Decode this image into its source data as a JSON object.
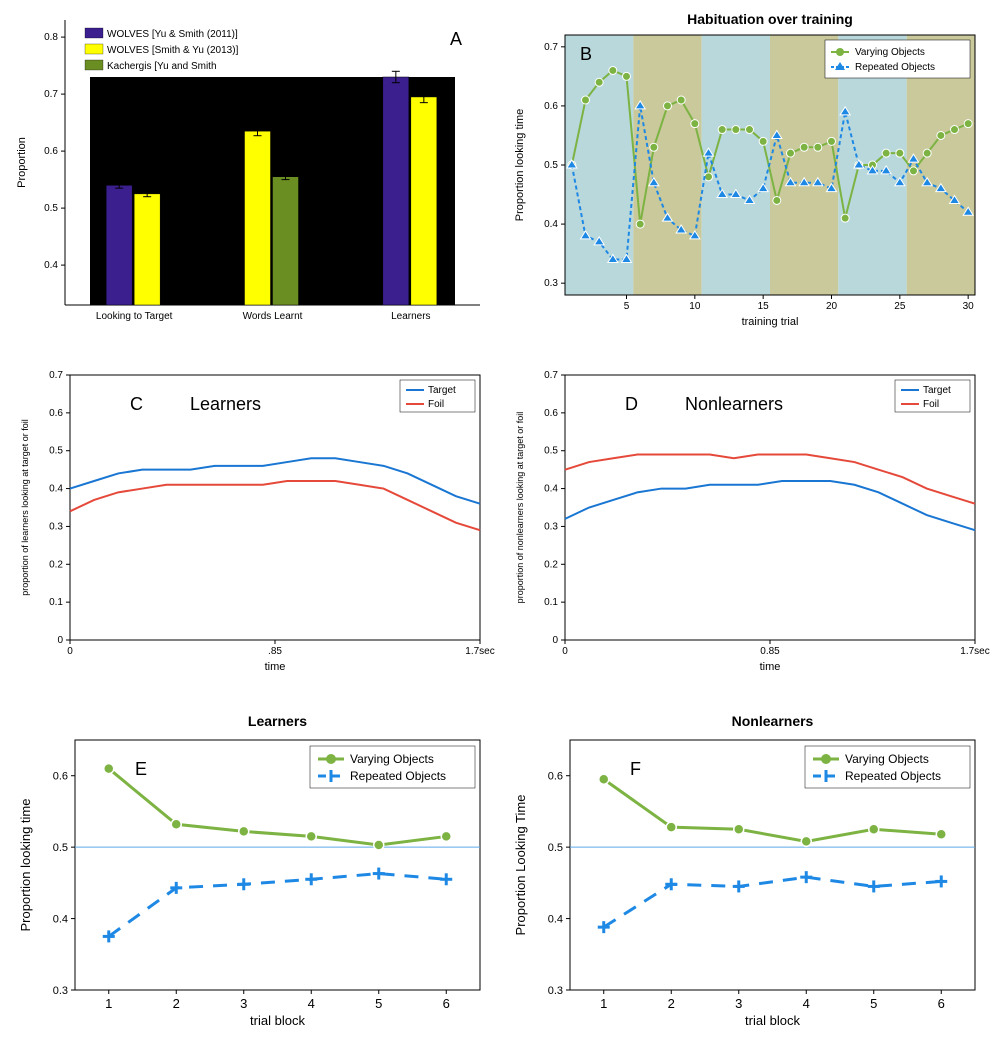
{
  "colors": {
    "purple": "#3b1f8f",
    "yellow": "#ffff00",
    "olive": "#6b8e23",
    "black": "#000000",
    "green": "#7cb342",
    "blue": "#1e88e5",
    "red": "#e5493a",
    "lineBlue": "#1976d2",
    "hline": "#5da9e9",
    "bandBlue": "#b8d8dc",
    "bandOlive": "#c9c99b",
    "axis": "#000000"
  },
  "A": {
    "letter": "A",
    "legend": [
      "WOLVES [Yu & Smith (2011)]",
      "WOLVES [Smith  & Yu (2013)]",
      "Kachergis [Yu and Smith"
    ],
    "ylabel": "Proportion",
    "categories": [
      "Looking to Target",
      "Words Learnt",
      "Learners"
    ],
    "series": [
      {
        "color": "#3b1f8f",
        "values": [
          0.54,
          null,
          0.73
        ],
        "err": [
          0.005,
          null,
          0.01
        ]
      },
      {
        "color": "#ffff00",
        "values": [
          0.525,
          0.635,
          0.695
        ],
        "err": [
          0.005,
          0.008,
          0.01
        ]
      },
      {
        "color": "#6b8e23",
        "values": [
          null,
          0.555,
          null
        ],
        "err": [
          null,
          0.005,
          null
        ]
      }
    ],
    "yticks": [
      0.4,
      0.5,
      0.6,
      0.7,
      0.8
    ],
    "ylim": [
      0.33,
      0.83
    ]
  },
  "B": {
    "letter": "B",
    "title": "Habituation over training",
    "xlabel": "training trial",
    "ylabel": "Proportion looking time",
    "legend": [
      "Varying Objects",
      "Repeated Objects"
    ],
    "x": [
      1,
      2,
      3,
      4,
      5,
      6,
      7,
      8,
      9,
      10,
      11,
      12,
      13,
      14,
      15,
      16,
      17,
      18,
      19,
      20,
      21,
      22,
      23,
      24,
      25,
      26,
      27,
      28,
      29,
      30
    ],
    "varying": [
      0.5,
      0.61,
      0.64,
      0.66,
      0.65,
      0.4,
      0.53,
      0.6,
      0.61,
      0.57,
      0.48,
      0.56,
      0.56,
      0.56,
      0.54,
      0.44,
      0.52,
      0.53,
      0.53,
      0.54,
      0.41,
      0.5,
      0.5,
      0.52,
      0.52,
      0.49,
      0.52,
      0.55,
      0.56,
      0.57
    ],
    "repeated": [
      0.5,
      0.38,
      0.37,
      0.34,
      0.34,
      0.6,
      0.47,
      0.41,
      0.39,
      0.38,
      0.52,
      0.45,
      0.45,
      0.44,
      0.46,
      0.55,
      0.47,
      0.47,
      0.47,
      0.46,
      0.59,
      0.5,
      0.49,
      0.49,
      0.47,
      0.51,
      0.47,
      0.46,
      0.44,
      0.42
    ],
    "ylim": [
      0.28,
      0.72
    ],
    "yticks": [
      0.3,
      0.4,
      0.5,
      0.6,
      0.7
    ],
    "xlim": [
      0.5,
      30.5
    ],
    "bands": [
      [
        0.5,
        5.5,
        "#b8d8dc"
      ],
      [
        5.5,
        10.5,
        "#c9c99b"
      ],
      [
        10.5,
        15.5,
        "#b8d8dc"
      ],
      [
        15.5,
        20.5,
        "#c9c99b"
      ],
      [
        20.5,
        25.5,
        "#b8d8dc"
      ],
      [
        25.5,
        30.5,
        "#c9c99b"
      ]
    ]
  },
  "C": {
    "letter": "C",
    "title": "Learners",
    "xlabel": "time",
    "ylabel": "proportion of learners looking at target or foil",
    "legend": [
      "Target",
      "Foil"
    ],
    "ylim": [
      0,
      0.7
    ],
    "yticks": [
      0,
      0.1,
      0.2,
      0.3,
      0.4,
      0.5,
      0.6,
      0.7
    ],
    "xlim": [
      0,
      1.7
    ],
    "xticks": [
      0,
      0.85,
      1.7
    ],
    "xticklabels": [
      "0",
      ".85",
      "1.7sec"
    ],
    "target": [
      0.4,
      0.42,
      0.44,
      0.45,
      0.45,
      0.45,
      0.46,
      0.46,
      0.46,
      0.47,
      0.48,
      0.48,
      0.47,
      0.46,
      0.44,
      0.41,
      0.38,
      0.36
    ],
    "foil": [
      0.34,
      0.37,
      0.39,
      0.4,
      0.41,
      0.41,
      0.41,
      0.41,
      0.41,
      0.42,
      0.42,
      0.42,
      0.41,
      0.4,
      0.37,
      0.34,
      0.31,
      0.29
    ]
  },
  "D": {
    "letter": "D",
    "title": "Nonlearners",
    "xlabel": "time",
    "ylabel": "proportion of nonlearners looking at target or foil",
    "legend": [
      "Target",
      "Foil"
    ],
    "ylim": [
      0,
      0.7
    ],
    "yticks": [
      0,
      0.1,
      0.2,
      0.3,
      0.4,
      0.5,
      0.6,
      0.7
    ],
    "xlim": [
      0,
      1.7
    ],
    "xticks": [
      0,
      0.85,
      1.7
    ],
    "xticklabels": [
      "0",
      "0.85",
      "1.7sec"
    ],
    "target": [
      0.32,
      0.35,
      0.37,
      0.39,
      0.4,
      0.4,
      0.41,
      0.41,
      0.41,
      0.42,
      0.42,
      0.42,
      0.41,
      0.39,
      0.36,
      0.33,
      0.31,
      0.29
    ],
    "foil": [
      0.45,
      0.47,
      0.48,
      0.49,
      0.49,
      0.49,
      0.49,
      0.48,
      0.49,
      0.49,
      0.49,
      0.48,
      0.47,
      0.45,
      0.43,
      0.4,
      0.38,
      0.36
    ]
  },
  "E": {
    "letter": "E",
    "title": "Learners",
    "xlabel": "trial block",
    "ylabel": "Proportion looking time",
    "legend": [
      "Varying Objects",
      "Repeated Objects"
    ],
    "x": [
      1,
      2,
      3,
      4,
      5,
      6
    ],
    "varying": [
      0.61,
      0.532,
      0.522,
      0.515,
      0.503,
      0.515
    ],
    "repeated": [
      0.375,
      0.443,
      0.448,
      0.455,
      0.463,
      0.455
    ],
    "ylim": [
      0.3,
      0.65
    ],
    "yticks": [
      0.3,
      0.4,
      0.5,
      0.6
    ],
    "hline": 0.5
  },
  "F": {
    "letter": "F",
    "title": "Nonlearners",
    "xlabel": "trial block",
    "ylabel": "Proportion Looking Time",
    "legend": [
      "Varying Objects",
      "Repeated Objects"
    ],
    "x": [
      1,
      2,
      3,
      4,
      5,
      6
    ],
    "varying": [
      0.595,
      0.528,
      0.525,
      0.508,
      0.525,
      0.518
    ],
    "repeated": [
      0.388,
      0.448,
      0.445,
      0.458,
      0.445,
      0.452
    ],
    "ylim": [
      0.3,
      0.65
    ],
    "yticks": [
      0.3,
      0.4,
      0.5,
      0.6
    ],
    "hline": 0.5
  }
}
